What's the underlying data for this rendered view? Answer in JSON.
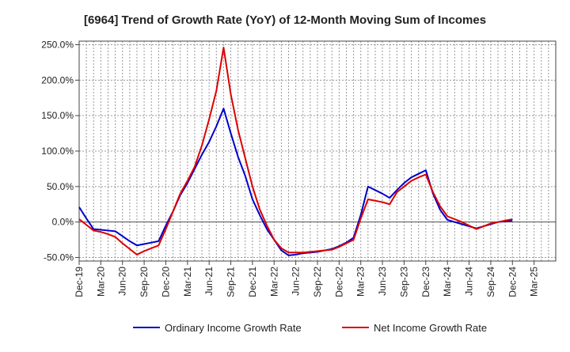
{
  "chart_data": {
    "type": "line",
    "title": "[6964]  Trend of Growth Rate (YoY) of 12-Month Moving Sum of Incomes",
    "xlabel": "",
    "ylabel": "",
    "grid": true,
    "legend_position": "bottom",
    "ylim": [
      -55,
      255
    ],
    "y_ticks": [
      250,
      200,
      150,
      100,
      50,
      0,
      -50
    ],
    "y_tick_labels": [
      "250.0%",
      "200.0%",
      "150.0%",
      "100.0%",
      "50.0%",
      "0.0%",
      "-50.0%"
    ],
    "x_tick_labels": [
      "Dec-19",
      "Mar-20",
      "Jun-20",
      "Sep-20",
      "Dec-20",
      "Mar-21",
      "Jun-21",
      "Sep-21",
      "Dec-21",
      "Mar-22",
      "Jun-22",
      "Sep-22",
      "Dec-22",
      "Mar-23",
      "Jun-23",
      "Sep-23",
      "Dec-23",
      "Mar-24",
      "Jun-24",
      "Sep-24",
      "Dec-24",
      "Mar-25"
    ],
    "x": [
      "Dec-19",
      "Jan-20",
      "Feb-20",
      "Mar-20",
      "Apr-20",
      "May-20",
      "Jun-20",
      "Jul-20",
      "Aug-20",
      "Sep-20",
      "Oct-20",
      "Nov-20",
      "Dec-20",
      "Jan-21",
      "Feb-21",
      "Mar-21",
      "Apr-21",
      "May-21",
      "Jun-21",
      "Jul-21",
      "Aug-21",
      "Sep-21",
      "Oct-21",
      "Nov-21",
      "Dec-21",
      "Jan-22",
      "Feb-22",
      "Mar-22",
      "Apr-22",
      "May-22",
      "Jun-22",
      "Jul-22",
      "Aug-22",
      "Sep-22",
      "Oct-22",
      "Nov-22",
      "Dec-22",
      "Jan-23",
      "Feb-23",
      "Mar-23",
      "Apr-23",
      "May-23",
      "Jun-23",
      "Jul-23",
      "Aug-23",
      "Sep-23",
      "Oct-23",
      "Nov-23",
      "Dec-23",
      "Jan-24",
      "Feb-24",
      "Mar-24",
      "Apr-24",
      "May-24",
      "Jun-24",
      "Jul-24",
      "Aug-24",
      "Sep-24",
      "Oct-24",
      "Nov-24",
      "Dec-24"
    ],
    "series": [
      {
        "name": "Ordinary Income Growth Rate",
        "color": "#0000cc",
        "values": [
          21,
          5,
          -10,
          -11,
          -12,
          -13,
          -20,
          -27,
          -33,
          -31,
          -29,
          -27,
          -5,
          15,
          38,
          55,
          75,
          95,
          113,
          135,
          160,
          125,
          92,
          65,
          32,
          10,
          -10,
          -25,
          -40,
          -47,
          -46,
          -44,
          -43,
          -42,
          -40,
          -38,
          -34,
          -29,
          -22,
          10,
          50,
          45,
          40,
          34,
          45,
          55,
          63,
          68,
          73,
          40,
          17,
          3,
          0,
          -3,
          -6,
          -9,
          -6,
          -3,
          0,
          1,
          2
        ]
      },
      {
        "name": "Net Income Growth Rate",
        "color": "#dd0000",
        "values": [
          4,
          -4,
          -12,
          -14,
          -17,
          -21,
          -30,
          -38,
          -46,
          -41,
          -37,
          -33,
          -10,
          15,
          40,
          58,
          78,
          108,
          145,
          185,
          246,
          180,
          130,
          90,
          50,
          18,
          -5,
          -25,
          -37,
          -43,
          -43,
          -43,
          -42,
          -41,
          -40,
          -39,
          -35,
          -30,
          -25,
          5,
          32,
          30,
          28,
          25,
          42,
          50,
          58,
          63,
          67,
          42,
          22,
          8,
          4,
          0,
          -5,
          -10,
          -6,
          -2,
          0,
          2,
          4
        ]
      }
    ]
  }
}
